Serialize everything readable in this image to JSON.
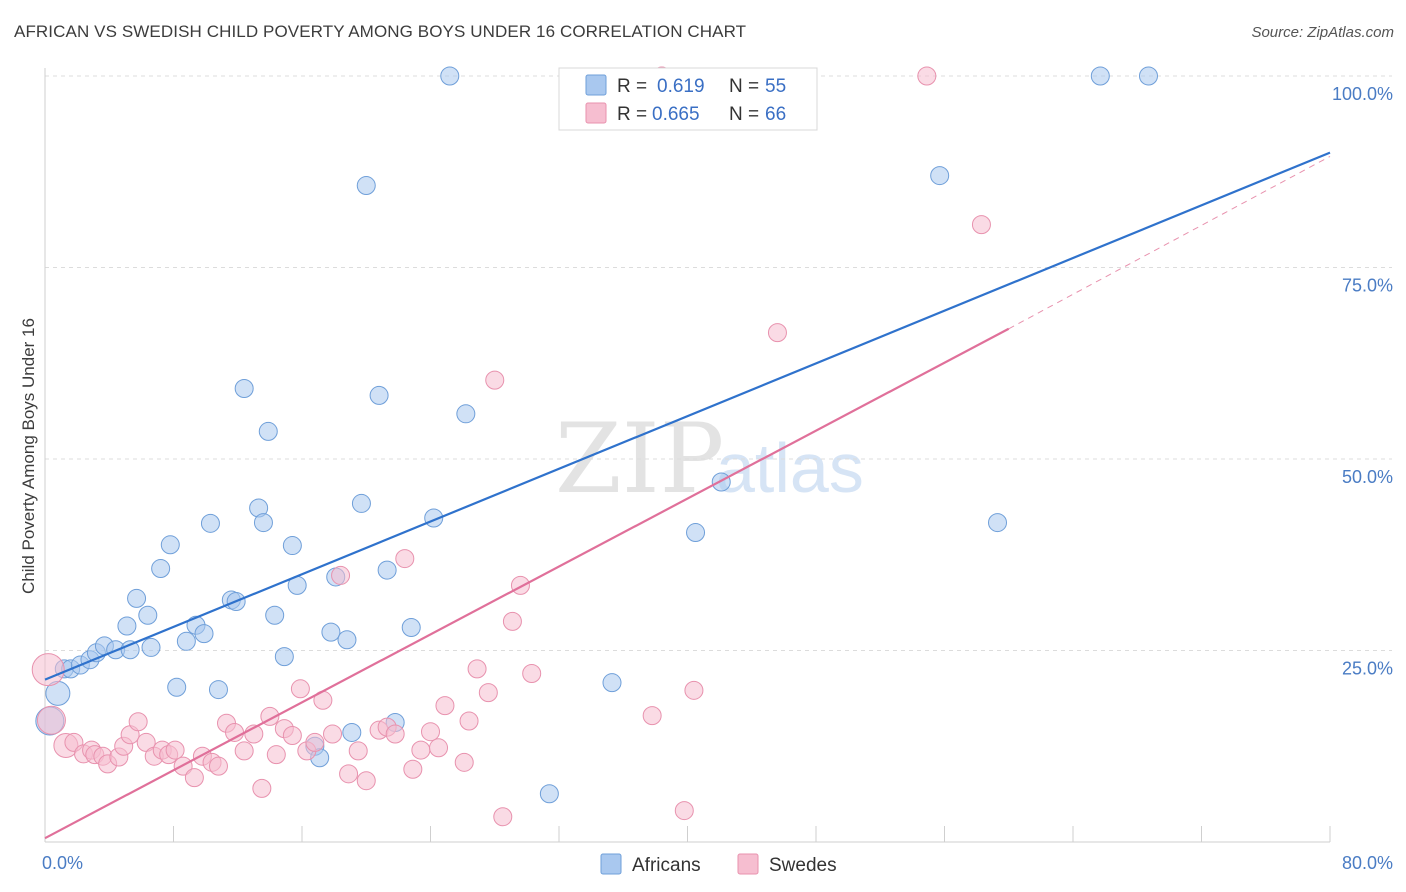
{
  "title": "AFRICAN VS SWEDISH CHILD POVERTY AMONG BOYS UNDER 16 CORRELATION CHART",
  "source": "Source: ZipAtlas.com",
  "watermark": {
    "zip": "ZIP",
    "atlas": "atlas"
  },
  "colors": {
    "africans_fill": "#a9c8ef",
    "africans_stroke": "#6f9fd9",
    "africans_line": "#2f72cc",
    "swedes_fill": "#f6bed0",
    "swedes_stroke": "#e892ae",
    "swedes_line": "#e0709a",
    "grid": "#dcdcdc",
    "tick_text": "#4a7cc4"
  },
  "legend": {
    "rows": [
      {
        "r_label": "R = ",
        "r_value": "0.619",
        "n_label": "N = ",
        "n_value": "55"
      },
      {
        "r_label": "R = ",
        "r_value": "0.665",
        "n_label": "N = ",
        "n_value": "66"
      }
    ]
  },
  "bottom_legend": [
    "Africans",
    "Swedes"
  ],
  "chart_data": {
    "type": "scatter",
    "title": "AFRICAN VS SWEDISH CHILD POVERTY AMONG BOYS UNDER 16 CORRELATION CHART",
    "xlabel": "",
    "ylabel": "Child Poverty Among Boys Under 16",
    "xlim": [
      0,
      80
    ],
    "ylim": [
      0,
      100
    ],
    "x_tick_labels": [
      "0.0%",
      "80.0%"
    ],
    "y_ticks": [
      25,
      50,
      75,
      100
    ],
    "y_tick_labels": [
      "25.0%",
      "50.0%",
      "75.0%",
      "100.0%"
    ],
    "series": [
      {
        "name": "Africans",
        "R": 0.619,
        "N": 55,
        "trend": {
          "x0": 0,
          "y0": 21.2,
          "x1": 80,
          "y1": 90.0,
          "dashed_to": null
        },
        "points": [
          [
            0.3,
            15.8,
            14
          ],
          [
            0.8,
            19.4,
            12
          ],
          [
            1.2,
            22.6,
            9
          ],
          [
            1.6,
            22.6,
            9
          ],
          [
            2.2,
            23.1,
            9
          ],
          [
            2.8,
            23.8,
            9
          ],
          [
            3.2,
            24.7,
            9
          ],
          [
            3.7,
            25.6,
            9
          ],
          [
            4.4,
            25.1,
            9
          ],
          [
            5.1,
            28.2,
            9
          ],
          [
            5.3,
            25.1,
            9
          ],
          [
            5.7,
            31.8,
            9
          ],
          [
            6.4,
            29.6,
            9
          ],
          [
            6.6,
            25.4,
            9
          ],
          [
            7.2,
            35.7,
            9
          ],
          [
            7.8,
            38.8,
            9
          ],
          [
            8.2,
            20.2,
            9
          ],
          [
            8.8,
            26.2,
            9
          ],
          [
            9.4,
            28.3,
            9
          ],
          [
            9.9,
            27.2,
            9
          ],
          [
            10.3,
            41.6,
            9
          ],
          [
            10.8,
            19.9,
            9
          ],
          [
            11.6,
            31.6,
            9
          ],
          [
            11.9,
            31.4,
            9
          ],
          [
            12.4,
            59.2,
            9
          ],
          [
            13.3,
            43.6,
            9
          ],
          [
            13.6,
            41.7,
            9
          ],
          [
            13.9,
            53.6,
            9
          ],
          [
            14.3,
            29.6,
            9
          ],
          [
            14.9,
            24.2,
            9
          ],
          [
            15.4,
            38.7,
            9
          ],
          [
            15.7,
            33.5,
            9
          ],
          [
            16.8,
            12.5,
            9
          ],
          [
            17.1,
            11.0,
            9
          ],
          [
            17.8,
            27.4,
            9
          ],
          [
            18.1,
            34.6,
            9
          ],
          [
            18.8,
            26.4,
            9
          ],
          [
            19.1,
            14.3,
            9
          ],
          [
            19.7,
            44.2,
            9
          ],
          [
            20.0,
            85.7,
            9
          ],
          [
            20.8,
            58.3,
            9
          ],
          [
            21.3,
            35.5,
            9
          ],
          [
            21.8,
            15.6,
            9
          ],
          [
            22.8,
            28.0,
            9
          ],
          [
            24.2,
            42.3,
            9
          ],
          [
            25.2,
            100.0,
            9
          ],
          [
            26.2,
            55.9,
            9
          ],
          [
            31.4,
            6.3,
            9
          ],
          [
            35.3,
            20.8,
            9
          ],
          [
            40.5,
            40.4,
            9
          ],
          [
            42.1,
            47.0,
            9
          ],
          [
            55.7,
            87.0,
            9
          ],
          [
            59.3,
            41.7,
            9
          ],
          [
            65.7,
            100.0,
            9
          ],
          [
            68.7,
            100.0,
            9
          ]
        ]
      },
      {
        "name": "Swedes",
        "R": 0.665,
        "N": 66,
        "trend": {
          "x0": 0,
          "y0": 0.5,
          "x1": 60,
          "y1": 67.0,
          "dashed_to": [
            80,
            89.5
          ]
        },
        "points": [
          [
            0.2,
            22.5,
            16
          ],
          [
            0.4,
            15.9,
            14
          ],
          [
            1.3,
            12.6,
            12
          ],
          [
            1.8,
            13.0,
            9
          ],
          [
            2.4,
            11.5,
            9
          ],
          [
            2.9,
            12.0,
            9
          ],
          [
            3.1,
            11.4,
            9
          ],
          [
            3.6,
            11.2,
            9
          ],
          [
            3.9,
            10.2,
            9
          ],
          [
            4.6,
            11.1,
            9
          ],
          [
            4.9,
            12.5,
            9
          ],
          [
            5.3,
            14.0,
            9
          ],
          [
            5.8,
            15.7,
            9
          ],
          [
            6.3,
            13.0,
            9
          ],
          [
            6.8,
            11.2,
            9
          ],
          [
            7.3,
            12.0,
            9
          ],
          [
            7.7,
            11.4,
            9
          ],
          [
            8.1,
            12.0,
            9
          ],
          [
            8.6,
            9.9,
            9
          ],
          [
            9.3,
            8.4,
            9
          ],
          [
            9.8,
            11.2,
            9
          ],
          [
            10.4,
            10.4,
            9
          ],
          [
            10.8,
            9.9,
            9
          ],
          [
            11.3,
            15.5,
            9
          ],
          [
            11.8,
            14.3,
            9
          ],
          [
            12.4,
            11.9,
            9
          ],
          [
            13.0,
            14.1,
            9
          ],
          [
            13.5,
            7.0,
            9
          ],
          [
            14.0,
            16.4,
            9
          ],
          [
            14.4,
            11.4,
            9
          ],
          [
            14.9,
            14.8,
            9
          ],
          [
            15.4,
            13.9,
            9
          ],
          [
            15.9,
            20.0,
            9
          ],
          [
            16.3,
            11.9,
            9
          ],
          [
            16.8,
            13.0,
            9
          ],
          [
            17.3,
            18.5,
            9
          ],
          [
            17.9,
            14.1,
            9
          ],
          [
            18.4,
            34.8,
            9
          ],
          [
            18.9,
            8.9,
            9
          ],
          [
            19.5,
            11.9,
            9
          ],
          [
            20.0,
            8.0,
            9
          ],
          [
            20.8,
            14.6,
            9
          ],
          [
            21.3,
            15.0,
            9
          ],
          [
            21.8,
            14.1,
            9
          ],
          [
            22.4,
            37.0,
            9
          ],
          [
            22.9,
            9.5,
            9
          ],
          [
            23.4,
            12.0,
            9
          ],
          [
            24.0,
            14.4,
            9
          ],
          [
            24.5,
            12.3,
            9
          ],
          [
            24.9,
            17.8,
            9
          ],
          [
            26.1,
            10.4,
            9
          ],
          [
            26.4,
            15.8,
            9
          ],
          [
            26.9,
            22.6,
            9
          ],
          [
            27.6,
            19.5,
            9
          ],
          [
            28.0,
            60.3,
            9
          ],
          [
            28.5,
            3.3,
            9
          ],
          [
            29.1,
            28.8,
            9
          ],
          [
            29.6,
            33.5,
            9
          ],
          [
            30.3,
            22.0,
            9
          ],
          [
            37.8,
            16.5,
            9
          ],
          [
            38.4,
            100.0,
            9
          ],
          [
            39.8,
            4.1,
            9
          ],
          [
            40.4,
            19.8,
            9
          ],
          [
            45.6,
            66.5,
            9
          ],
          [
            54.9,
            100.0,
            9
          ],
          [
            58.3,
            80.6,
            9
          ]
        ]
      }
    ]
  }
}
